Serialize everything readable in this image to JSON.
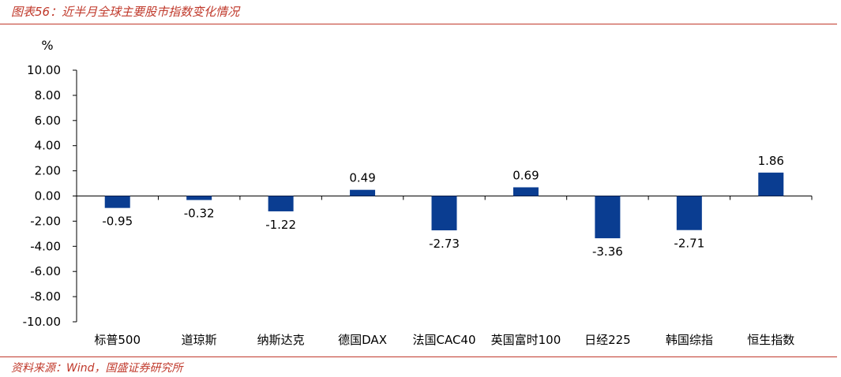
{
  "header": {
    "title": "图表56：近半月全球主要股市指数变化情况"
  },
  "footer": {
    "source": "资料来源：Wind，国盛证券研究所"
  },
  "chart_data": {
    "type": "bar",
    "unit": "%",
    "categories": [
      "标普500",
      "道琼斯",
      "纳斯达克",
      "德国DAX",
      "法国CAC40",
      "英国富时100",
      "日经225",
      "韩国综指",
      "恒生指数"
    ],
    "values": [
      -0.95,
      -0.32,
      -1.22,
      0.49,
      -2.73,
      0.69,
      -3.36,
      -2.71,
      1.86
    ],
    "value_labels": [
      "-0.95",
      "-0.32",
      "-1.22",
      "0.49",
      "-2.73",
      "0.69",
      "-3.36",
      "-2.71",
      "1.86"
    ],
    "ylim": [
      -10,
      10
    ],
    "yticks": [
      "10.00",
      "8.00",
      "6.00",
      "4.00",
      "2.00",
      "0.00",
      "-2.00",
      "-4.00",
      "-6.00",
      "-8.00",
      "-10.00"
    ],
    "ytick_values": [
      10,
      8,
      6,
      4,
      2,
      0,
      -2,
      -4,
      -6,
      -8,
      -10
    ],
    "bar_color": "#0a3d91",
    "grid": false,
    "legend": "none"
  }
}
